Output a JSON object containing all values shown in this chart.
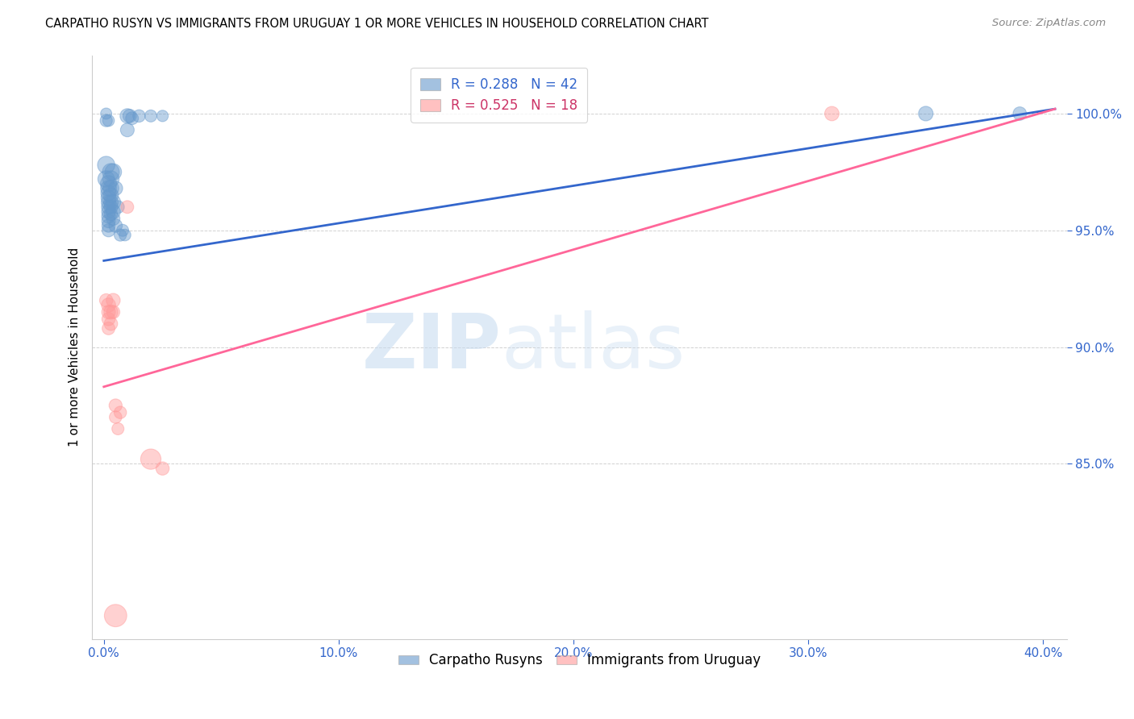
{
  "title": "CARPATHO RUSYN VS IMMIGRANTS FROM URUGUAY 1 OR MORE VEHICLES IN HOUSEHOLD CORRELATION CHART",
  "source": "Source: ZipAtlas.com",
  "xlabel_ticks": [
    "0.0%",
    "",
    "",
    "",
    "",
    "10.0%",
    "",
    "",
    "",
    "",
    "20.0%",
    "",
    "",
    "",
    "",
    "30.0%",
    "",
    "",
    "",
    "",
    "40.0%"
  ],
  "xlabel_tick_vals": [
    0.0,
    0.02,
    0.04,
    0.06,
    0.08,
    0.1,
    0.12,
    0.14,
    0.16,
    0.18,
    0.2,
    0.22,
    0.24,
    0.26,
    0.28,
    0.3,
    0.32,
    0.34,
    0.36,
    0.38,
    0.4
  ],
  "xlabel_major_ticks": [
    0.0,
    0.1,
    0.2,
    0.3,
    0.4
  ],
  "xlabel_major_labels": [
    "0.0%",
    "10.0%",
    "20.0%",
    "30.0%",
    "40.0%"
  ],
  "ylabel": "1 or more Vehicles in Household",
  "ylabel_ticks": [
    "85.0%",
    "90.0%",
    "95.0%",
    "100.0%"
  ],
  "ylabel_tick_vals": [
    0.85,
    0.9,
    0.95,
    1.0
  ],
  "xlim": [
    -0.005,
    0.41
  ],
  "ylim": [
    0.775,
    1.025
  ],
  "blue_R": 0.288,
  "blue_N": 42,
  "pink_R": 0.525,
  "pink_N": 18,
  "blue_color": "#6699CC",
  "pink_color": "#FF9999",
  "blue_line_color": "#3366CC",
  "pink_line_color": "#FF6699",
  "legend_label_blue": "Carpatho Rusyns",
  "legend_label_pink": "Immigrants from Uruguay",
  "watermark_zip": "ZIP",
  "watermark_atlas": "atlas",
  "blue_scatter": [
    [
      0.001,
      1.0
    ],
    [
      0.001,
      0.997
    ],
    [
      0.002,
      0.997
    ],
    [
      0.001,
      0.978
    ],
    [
      0.001,
      0.972
    ],
    [
      0.002,
      0.97
    ],
    [
      0.002,
      0.968
    ],
    [
      0.002,
      0.966
    ],
    [
      0.002,
      0.964
    ],
    [
      0.002,
      0.962
    ],
    [
      0.002,
      0.96
    ],
    [
      0.002,
      0.958
    ],
    [
      0.002,
      0.956
    ],
    [
      0.002,
      0.954
    ],
    [
      0.002,
      0.952
    ],
    [
      0.002,
      0.95
    ],
    [
      0.003,
      0.975
    ],
    [
      0.003,
      0.972
    ],
    [
      0.003,
      0.968
    ],
    [
      0.003,
      0.965
    ],
    [
      0.003,
      0.962
    ],
    [
      0.003,
      0.96
    ],
    [
      0.003,
      0.957
    ],
    [
      0.004,
      0.975
    ],
    [
      0.004,
      0.962
    ],
    [
      0.004,
      0.958
    ],
    [
      0.004,
      0.955
    ],
    [
      0.005,
      0.968
    ],
    [
      0.005,
      0.952
    ],
    [
      0.006,
      0.96
    ],
    [
      0.007,
      0.948
    ],
    [
      0.008,
      0.95
    ],
    [
      0.009,
      0.948
    ],
    [
      0.01,
      0.999
    ],
    [
      0.01,
      0.993
    ],
    [
      0.011,
      0.999
    ],
    [
      0.012,
      0.998
    ],
    [
      0.015,
      0.999
    ],
    [
      0.02,
      0.999
    ],
    [
      0.025,
      0.999
    ],
    [
      0.35,
      1.0
    ],
    [
      0.39,
      1.0
    ]
  ],
  "blue_sizes": [
    50,
    60,
    55,
    120,
    110,
    105,
    100,
    95,
    90,
    85,
    80,
    78,
    76,
    74,
    70,
    68,
    115,
    108,
    100,
    92,
    85,
    78,
    70,
    110,
    90,
    82,
    72,
    80,
    72,
    65,
    60,
    58,
    55,
    85,
    75,
    72,
    65,
    62,
    58,
    52,
    85,
    72
  ],
  "pink_scatter": [
    [
      0.001,
      0.92
    ],
    [
      0.002,
      0.918
    ],
    [
      0.002,
      0.915
    ],
    [
      0.002,
      0.912
    ],
    [
      0.002,
      0.908
    ],
    [
      0.003,
      0.915
    ],
    [
      0.003,
      0.91
    ],
    [
      0.004,
      0.92
    ],
    [
      0.004,
      0.915
    ],
    [
      0.005,
      0.875
    ],
    [
      0.005,
      0.87
    ],
    [
      0.006,
      0.865
    ],
    [
      0.007,
      0.872
    ],
    [
      0.01,
      0.96
    ],
    [
      0.005,
      0.785
    ],
    [
      0.02,
      0.852
    ],
    [
      0.025,
      0.848
    ],
    [
      0.31,
      1.0
    ]
  ],
  "pink_sizes": [
    70,
    80,
    75,
    70,
    65,
    80,
    72,
    78,
    70,
    68,
    62,
    58,
    62,
    65,
    200,
    165,
    70,
    82
  ],
  "blue_trendline": [
    [
      0.0,
      0.937
    ],
    [
      0.405,
      1.002
    ]
  ],
  "pink_trendline": [
    [
      0.0,
      0.883
    ],
    [
      0.405,
      1.002
    ]
  ]
}
